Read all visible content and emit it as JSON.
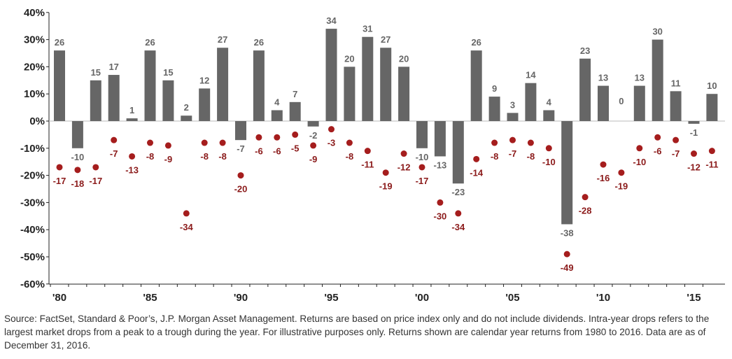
{
  "colors": {
    "bar": "#666666",
    "drop": "#a51d1d",
    "drop_label": "#8b1a1a",
    "axis": "#222222"
  },
  "chart_data": {
    "type": "bar",
    "series": [
      {
        "name": "",
        "mark": "bar",
        "values": [
          26,
          -10,
          15,
          17,
          1,
          26,
          15,
          2,
          12,
          27,
          -7,
          26,
          4,
          7,
          -2,
          34,
          20,
          31,
          27,
          20,
          -10,
          -13,
          -23,
          26,
          9,
          3,
          14,
          4,
          -38,
          23,
          13,
          0,
          13,
          30,
          11,
          -1,
          10
        ]
      },
      {
        "name": "",
        "mark": "dot",
        "values": [
          -17,
          -18,
          -17,
          -7,
          -13,
          -8,
          -9,
          -34,
          -8,
          -8,
          -20,
          -6,
          -6,
          -5,
          -9,
          -3,
          -8,
          -11,
          -19,
          -12,
          -17,
          -30,
          -34,
          -14,
          -8,
          -7,
          -8,
          -10,
          -49,
          -28,
          -16,
          -19,
          -10,
          -6,
          -7,
          -12,
          -11
        ]
      }
    ],
    "year_start": 1980,
    "year_end": 2016,
    "ylim": [
      -60,
      40
    ],
    "yticks": [
      40,
      30,
      20,
      10,
      0,
      -10,
      -20,
      -30,
      -40,
      -50,
      -60
    ],
    "ytick_labels": [
      "40%",
      "30%",
      "20%",
      "10%",
      "0%",
      "-10%",
      "-20%",
      "-30%",
      "-40%",
      "-50%",
      "-60%"
    ],
    "xtick_years": [
      1980,
      1985,
      1990,
      1995,
      2000,
      2005,
      2010,
      2015
    ],
    "xtick_labels": [
      "'80",
      "'85",
      "'90",
      "'95",
      "'00",
      "'05",
      "'10",
      "'15"
    ],
    "grid": false
  },
  "source_note": "Source: FactSet, Standard & Poor’s, J.P. Morgan Asset Management. Returns are based on price index only and do not include dividends. Intra-year drops refers to the largest market drops from a peak to a trough during the year. For illustrative purposes only. Returns shown are calendar year returns from 1980 to 2016. Data are as of December 31, 2016."
}
